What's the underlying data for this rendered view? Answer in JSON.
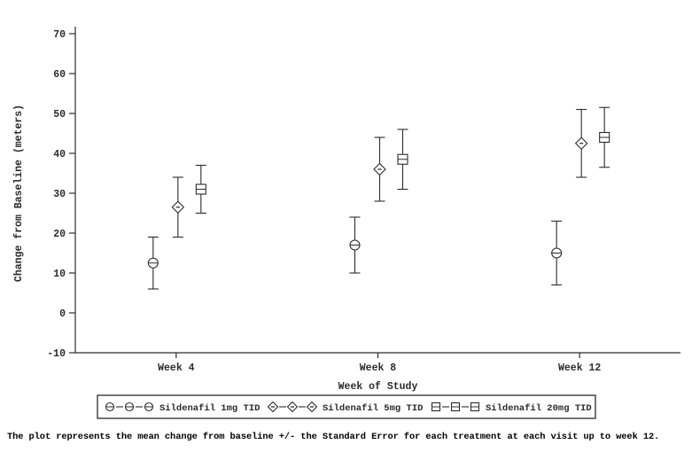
{
  "colors": {
    "ink": "#2b2b2b",
    "background": "#ffffff"
  },
  "chart_data": {
    "type": "scatter",
    "subtype": "means-with-standard-error-bars",
    "title": "",
    "xlabel": "Week of Study",
    "ylabel": "Change from Baseline (meters)",
    "categories": [
      "Week 4",
      "Week 8",
      "Week 12"
    ],
    "ylim": [
      -10,
      70
    ],
    "yticks": [
      -10,
      0,
      10,
      20,
      30,
      40,
      50,
      60,
      70
    ],
    "grid": "off",
    "legend_position": "bottom-boxed",
    "series": [
      {
        "name": "Sildenafil 1mg TID",
        "marker": "circle",
        "means": [
          12.5,
          17,
          15
        ],
        "lower": [
          6,
          10,
          7
        ],
        "upper": [
          19,
          24,
          23
        ]
      },
      {
        "name": "Sildenafil 5mg TID",
        "marker": "diamond",
        "means": [
          26.5,
          36,
          42.5
        ],
        "lower": [
          19,
          28,
          34
        ],
        "upper": [
          34,
          44,
          51
        ]
      },
      {
        "name": "Sildenafil 20mg TID",
        "marker": "square",
        "means": [
          31,
          38.5,
          44
        ],
        "lower": [
          25,
          31,
          36.5
        ],
        "upper": [
          37,
          46,
          51.5
        ]
      }
    ],
    "footnote": "The plot represents the mean change from baseline +/- the Standard Error for each treatment at each visit up to week 12."
  }
}
